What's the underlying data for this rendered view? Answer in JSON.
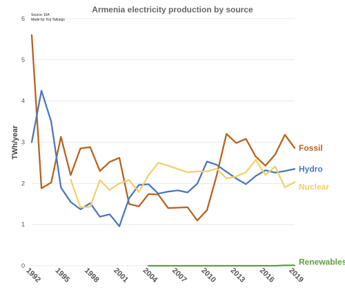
{
  "chart_data": {
    "type": "line",
    "title": "Armenia electricity production by source",
    "source_note": "Source: EIA",
    "author_note": "Made by: Koj Tallungs",
    "ylabel": "TWh/year",
    "xlabel": "",
    "ylim": [
      0,
      6
    ],
    "yticks": [
      0,
      1,
      2,
      3,
      4,
      5,
      6
    ],
    "xlim": [
      1992,
      2019
    ],
    "xticks": [
      1992,
      1995,
      1998,
      2001,
      2004,
      2007,
      2010,
      2013,
      2016,
      2019
    ],
    "grid": true,
    "legend": "series labels at right end of lines",
    "series": [
      {
        "name": "Fossil",
        "color": "#b8611c",
        "x": [
          1992,
          1993,
          1994,
          1995,
          1996,
          1997,
          1998,
          1999,
          2000,
          2001,
          2002,
          2003,
          2004,
          2005,
          2006,
          2007,
          2008,
          2009,
          2010,
          2011,
          2012,
          2013,
          2014,
          2015,
          2016,
          2017,
          2018,
          2019
        ],
        "values": [
          5.6,
          1.88,
          2.02,
          3.13,
          2.2,
          2.85,
          2.88,
          2.3,
          2.52,
          2.62,
          1.5,
          1.44,
          1.74,
          1.73,
          1.4,
          1.41,
          1.42,
          1.1,
          1.35,
          2.2,
          3.2,
          2.98,
          3.08,
          2.65,
          2.43,
          2.7,
          3.18,
          2.86
        ]
      },
      {
        "name": "Hydro",
        "color": "#4a78b8",
        "x": [
          1992,
          1993,
          1994,
          1995,
          1996,
          1997,
          1998,
          1999,
          2000,
          2001,
          2002,
          2003,
          2004,
          2005,
          2006,
          2007,
          2008,
          2009,
          2010,
          2011,
          2012,
          2013,
          2014,
          2015,
          2016,
          2017,
          2018,
          2019
        ],
        "values": [
          3.0,
          4.25,
          3.5,
          1.9,
          1.55,
          1.37,
          1.52,
          1.19,
          1.25,
          0.96,
          1.64,
          1.96,
          1.98,
          1.75,
          1.8,
          1.83,
          1.78,
          1.99,
          2.53,
          2.45,
          2.28,
          2.12,
          1.98,
          2.18,
          2.32,
          2.26,
          2.3,
          2.35
        ]
      },
      {
        "name": "Nuclear",
        "color": "#f0d16b",
        "x": [
          1996,
          1997,
          1998,
          1999,
          2000,
          2001,
          2002,
          2003,
          2004,
          2005,
          2006,
          2007,
          2008,
          2009,
          2010,
          2011,
          2012,
          2013,
          2014,
          2015,
          2016,
          2017,
          2018,
          2019
        ],
        "values": [
          2.09,
          1.42,
          1.43,
          2.08,
          1.84,
          2.0,
          2.08,
          1.79,
          2.2,
          2.5,
          2.43,
          2.35,
          2.27,
          2.29,
          2.29,
          2.36,
          2.12,
          2.17,
          2.27,
          2.57,
          2.2,
          2.41,
          1.9,
          2.03
        ]
      },
      {
        "name": "Renewables",
        "color": "#5f9e3c",
        "x": [
          2004,
          2005,
          2006,
          2007,
          2008,
          2009,
          2010,
          2011,
          2012,
          2013,
          2014,
          2015,
          2016,
          2017,
          2018,
          2019
        ],
        "values": [
          0.0,
          0.0,
          0.0,
          0.0,
          0.0,
          0.0,
          0.0,
          0.0,
          0.0,
          0.0,
          0.0,
          0.0,
          0.0,
          0.0,
          0.01,
          0.01
        ]
      }
    ]
  }
}
